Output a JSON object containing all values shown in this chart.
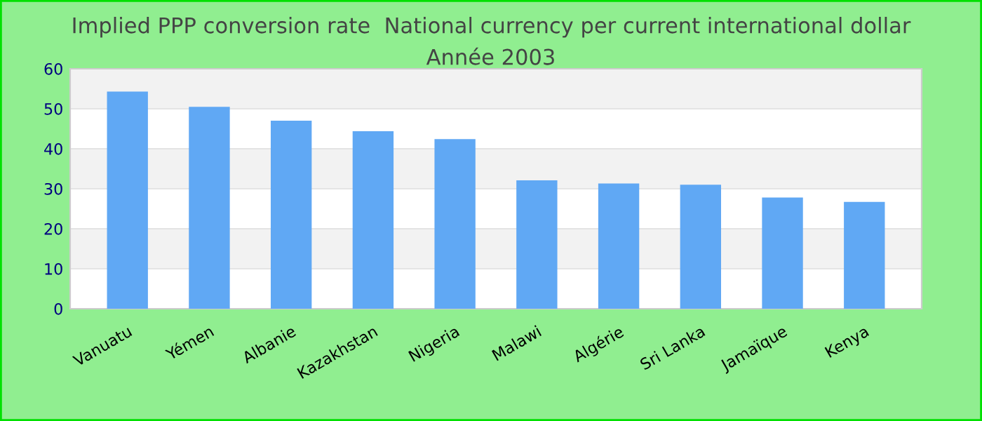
{
  "chart_data": {
    "type": "bar",
    "title": "Implied PPP conversion rate  National currency per current international dollar",
    "subtitle": "Année 2003",
    "categories": [
      "Vanuatu",
      "Yémen",
      "Albanie",
      "Kazakhstan",
      "Nigeria",
      "Malawi",
      "Algérie",
      "Sri Lanka",
      "Jamaïque",
      "Kenya"
    ],
    "values": [
      54.3,
      50.5,
      47.0,
      44.4,
      42.4,
      32.1,
      31.3,
      31.0,
      27.8,
      26.7
    ],
    "color": "#60a8f4",
    "ylim": [
      0,
      60
    ],
    "yticks": [
      0,
      10,
      20,
      30,
      40,
      50,
      60
    ],
    "grid": "y"
  }
}
